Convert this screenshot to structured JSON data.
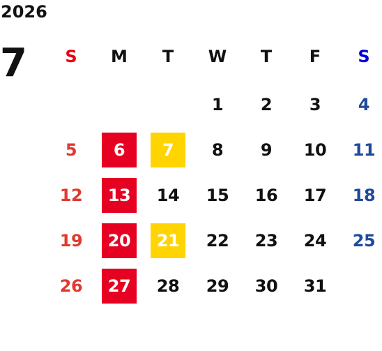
{
  "calendar": {
    "year": "2026",
    "month": "7",
    "weekdays": [
      "S",
      "M",
      "T",
      "W",
      "T",
      "F",
      "S"
    ],
    "first_weekday_index": 3,
    "weeks": [
      [
        "",
        "",
        "",
        "1",
        "2",
        "3",
        "4"
      ],
      [
        "5",
        "6",
        "7",
        "8",
        "9",
        "10",
        "11"
      ],
      [
        "12",
        "13",
        "14",
        "15",
        "16",
        "17",
        "18"
      ],
      [
        "19",
        "20",
        "21",
        "22",
        "23",
        "24",
        "25"
      ],
      [
        "26",
        "27",
        "28",
        "29",
        "30",
        "31",
        ""
      ]
    ],
    "highlights": {
      "red": [
        "6",
        "13",
        "20",
        "27"
      ],
      "yellow": [
        "7",
        "21"
      ]
    },
    "colors": {
      "sunday_header": "#e60012",
      "saturday_header": "#0000dd",
      "sunday_dates": "#e03a2f",
      "saturday_dates": "#1f4a9a",
      "default_text": "#111111",
      "highlight_red": "#e60022",
      "highlight_yellow": "#ffd400",
      "highlight_text": "#ffffff"
    }
  }
}
